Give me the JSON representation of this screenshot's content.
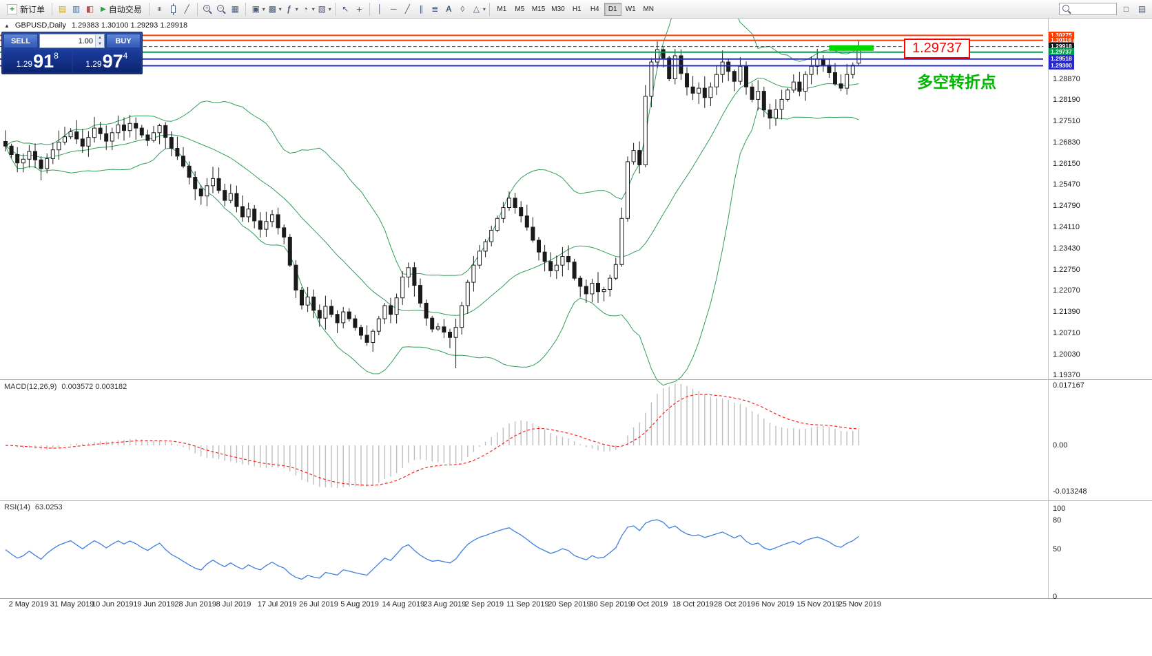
{
  "toolbar": {
    "new_order_label": "新订单",
    "autotrading_label": "自动交易",
    "timeframes": [
      "M1",
      "M5",
      "M15",
      "M30",
      "H1",
      "H4",
      "D1",
      "W1",
      "MN"
    ],
    "active_timeframe": "D1",
    "search_value": ""
  },
  "icons": {
    "new_order": "+",
    "charts": "▤",
    "market_watch": "▥",
    "navigator": "◧",
    "autotrading_play": "▶",
    "chart_bars": "≡",
    "chart_line": "╱",
    "zoom_in": "+",
    "zoom_out": "−",
    "grid": "▦",
    "tile": "▣",
    "cascade": "▩",
    "indicators": "ƒ",
    "periods": "◔",
    "templates": "▧",
    "cursor": "↖",
    "crosshair": "+",
    "vline": "│",
    "hline": "─",
    "trendline": "╱",
    "channel": "∥",
    "fibonacci": "≣",
    "text_tool": "A",
    "label_tool": "◊",
    "shapes": "△",
    "caret": "▾",
    "toggle": "▲",
    "window": "□",
    "stepper_up": "▲",
    "stepper_down": "▼"
  },
  "chart_header": {
    "symbol_period": "GBPUSD,Daily",
    "ohlc": "1.29383 1.30100 1.29293 1.29918"
  },
  "quote_panel": {
    "sell_label": "SELL",
    "buy_label": "BUY",
    "volume": "1.00",
    "bid_prefix": "1.29",
    "bid_big": "91",
    "bid_sup": "8",
    "ask_prefix": "1.29",
    "ask_big": "97",
    "ask_sup": "4"
  },
  "annotations": {
    "price_callout": "1.29737",
    "callout_color": "#ff0000",
    "note_text": "多空转折点",
    "note_color": "#00b400"
  },
  "chart_data": {
    "type": "candlestick",
    "symbol": "GBPUSD",
    "period": "Daily",
    "candles": {
      "closes": [
        1.2672,
        1.2645,
        1.2618,
        1.263,
        1.2655,
        1.2628,
        1.26,
        1.2632,
        1.266,
        1.2685,
        1.2702,
        1.2718,
        1.2695,
        1.2672,
        1.27,
        1.273,
        1.2712,
        1.2688,
        1.2715,
        1.274,
        1.2722,
        1.2745,
        1.273,
        1.2708,
        1.269,
        1.2715,
        1.2738,
        1.27,
        1.2665,
        1.264,
        1.2608,
        1.2572,
        1.2535,
        1.2512,
        1.2545,
        1.2568,
        1.253,
        1.2498,
        1.252,
        1.2478,
        1.2445,
        1.247,
        1.2432,
        1.2405,
        1.243,
        1.2452,
        1.241,
        1.238,
        1.229,
        1.221,
        1.2162,
        1.2188,
        1.2145,
        1.212,
        1.2158,
        1.2132,
        1.2105,
        1.214,
        1.2118,
        1.209,
        1.2065,
        1.2042,
        1.2078,
        1.2118,
        1.216,
        1.2132,
        1.2185,
        1.2252,
        1.2282,
        1.2225,
        1.2168,
        1.212,
        1.2085,
        1.2092,
        1.2075,
        1.2058,
        1.209,
        1.216,
        1.2235,
        1.229,
        1.2335,
        1.2365,
        1.2402,
        1.244,
        1.2475,
        1.2505,
        1.2475,
        1.2448,
        1.2412,
        1.237,
        1.2332,
        1.2302,
        1.2272,
        1.229,
        1.2318,
        1.23,
        1.2248,
        1.2222,
        1.2198,
        1.2232,
        1.2205,
        1.2212,
        1.2248,
        1.2292,
        1.244,
        1.2622,
        1.2658,
        1.2612,
        1.2832,
        1.2942,
        1.2982,
        1.2955,
        1.2888,
        1.2962,
        1.2905,
        1.2862,
        1.2842,
        1.2858,
        1.2828,
        1.2862,
        1.2902,
        1.2942,
        1.2912,
        1.288,
        1.2928,
        1.2862,
        1.2822,
        1.2848,
        1.2788,
        1.2762,
        1.279,
        1.2822,
        1.2852,
        1.2878,
        1.2848,
        1.2902,
        1.2928,
        1.2952,
        1.2932,
        1.2908,
        1.2872,
        1.2858,
        1.2902,
        1.2932,
        1.29918
      ],
      "last": {
        "open": 1.29383,
        "high": 1.301,
        "low": 1.29293,
        "close": 1.29918
      },
      "low_spike": {
        "index": 76,
        "low": 1.1959
      }
    },
    "bollinger": {
      "period": 20,
      "deviation": 2,
      "color": "#2e9e58"
    },
    "levels": [
      {
        "price": 1.30275,
        "color": "#ff3c00",
        "style": "solid",
        "badge": "1.30275",
        "badge_bg": "#ff3c00"
      },
      {
        "price": 1.30116,
        "color": "#ff3c00",
        "style": "solid",
        "badge": "1.30116",
        "badge_bg": "#ff3c00"
      },
      {
        "price": 1.29918,
        "color": "#444444",
        "style": "dashed",
        "badge": "1.29918",
        "badge_bg": "#10121d"
      },
      {
        "price": 1.29737,
        "color": "#00a048",
        "style": "solid",
        "badge": "1.29737",
        "badge_bg": "#00a048"
      },
      {
        "price": 1.29518,
        "color": "#2828c8",
        "style": "solid",
        "badge": "1.29518",
        "badge_bg": "#2828c8"
      },
      {
        "price": 1.293,
        "color": "#2828c8",
        "style": "solid",
        "badge": "1.29300",
        "badge_bg": "#2828c8"
      }
    ],
    "highlight_box": {
      "from_index": 139,
      "to_index": 146.5,
      "price_top": 1.2996,
      "price_bottom": 1.2978,
      "color": "#00d800"
    },
    "price_ticks": [
      "1.28870",
      "1.28190",
      "1.27510",
      "1.26830",
      "1.26150",
      "1.25470",
      "1.24790",
      "1.24110",
      "1.23430",
      "1.22750",
      "1.22070",
      "1.21390",
      "1.20710",
      "1.20030",
      "1.19370"
    ],
    "time_ticks": [
      "2 May 2019",
      "31 May 2019",
      "10 Jun 2019",
      "19 Jun 2019",
      "28 Jun 2019",
      "8 Jul 2019",
      "17 Jul 2019",
      "26 Jul 2019",
      "5 Aug 2019",
      "14 Aug 2019",
      "23 Aug 2019",
      "2 Sep 2019",
      "11 Sep 2019",
      "20 Sep 2019",
      "30 Sep 2019",
      "9 Oct 2019",
      "18 Oct 2019",
      "28 Oct 2019",
      "6 Nov 2019",
      "15 Nov 2019",
      "25 Nov 2019"
    ],
    "macd": {
      "label": "MACD(12,26,9)",
      "values": "0.003572 0.003182",
      "params": [
        12,
        26,
        9
      ],
      "scale": [
        "0.017167",
        "0.00",
        "-0.013248"
      ]
    },
    "rsi": {
      "label": "RSI(14)",
      "value": "63.0253",
      "period": 14,
      "scale": [
        "100",
        "80",
        "50",
        "0"
      ]
    }
  }
}
